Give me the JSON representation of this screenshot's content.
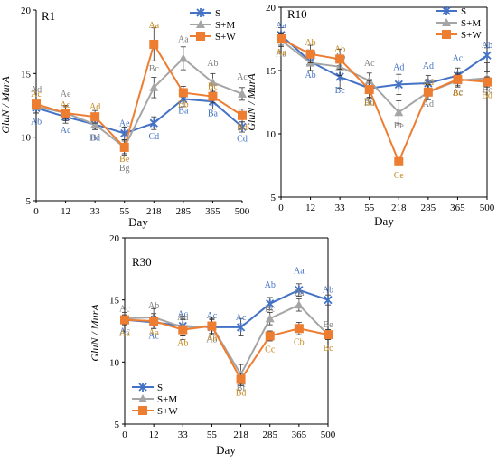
{
  "colors": {
    "S": "#4472c4",
    "S+M": "#a5a5a5",
    "S+W": "#ed7d31",
    "axis": "#000000",
    "letters_S": "#4472c4",
    "letters_M": "#7f7f7f",
    "letters_W": "#c5851a"
  },
  "chart_data": [
    {
      "type": "line",
      "title": "R1",
      "xlabel": "Day",
      "ylabel": "GluN / MurA",
      "categories": [
        "0",
        "12",
        "33",
        "55",
        "218",
        "285",
        "365",
        "500"
      ],
      "ylim": [
        5,
        20
      ],
      "yticks": [
        "5",
        "10",
        "15",
        "20"
      ],
      "legend_position": "top-right",
      "series": [
        {
          "name": "S",
          "values": [
            12.3,
            11.6,
            11.0,
            10.3,
            11.1,
            13.0,
            12.8,
            10.8
          ],
          "err": [
            0.4,
            0.5,
            0.4,
            0.5,
            0.5,
            0.6,
            0.6,
            0.4
          ],
          "letters": [
            "Ab",
            "Ac",
            "Bd",
            "Ae",
            "Cd",
            "Ba",
            "Ba",
            "Cd"
          ]
        },
        {
          "name": "S+M",
          "values": [
            12.4,
            11.9,
            11.0,
            9.2,
            13.9,
            16.2,
            14.3,
            13.4
          ],
          "err": [
            0.5,
            0.5,
            0.4,
            0.5,
            0.8,
            0.9,
            0.7,
            0.5
          ],
          "letters": [
            "Ad",
            "Ae",
            "Bf",
            "Bg",
            "Bc",
            "Aa",
            "Ab",
            "Ac"
          ]
        },
        {
          "name": "S+W",
          "values": [
            12.6,
            11.9,
            11.6,
            9.2,
            17.3,
            13.5,
            13.2,
            11.7
          ],
          "err": [
            0.4,
            0.6,
            0.5,
            0.6,
            1.3,
            0.5,
            0.5,
            0.5
          ],
          "letters": [
            "Ac",
            "Ad",
            "Ad",
            "Be",
            "Aa",
            "Bb",
            "Bc",
            "Bd"
          ]
        }
      ]
    },
    {
      "type": "line",
      "title": "R10",
      "xlabel": "Day",
      "ylabel": "GluN / MurA",
      "categories": [
        "0",
        "12",
        "33",
        "55",
        "218",
        "285",
        "365",
        "500"
      ],
      "ylim": [
        5,
        20
      ],
      "yticks": [
        "5",
        "10",
        "15",
        "20"
      ],
      "legend_position": "top-right",
      "series": [
        {
          "name": "S",
          "values": [
            17.8,
            15.7,
            14.5,
            13.6,
            13.9,
            14.0,
            14.6,
            16.2
          ],
          "err": [
            0.6,
            0.7,
            0.9,
            0.7,
            0.8,
            0.6,
            0.6,
            0.6
          ],
          "letters": [
            "Aa",
            "Ab",
            "Bc",
            "Bd",
            "Ad",
            "Ad",
            "Ac",
            "Ab"
          ]
        },
        {
          "name": "S+M",
          "values": [
            17.4,
            15.6,
            15.3,
            14.2,
            11.7,
            13.3,
            14.2,
            14.4
          ],
          "err": [
            0.5,
            0.6,
            0.7,
            0.6,
            0.9,
            0.6,
            0.5,
            0.5
          ],
          "letters": [
            "Aa",
            "Ab",
            "Ab",
            "Ac",
            "Be",
            "Ad",
            "Ac",
            "Bc"
          ]
        },
        {
          "name": "S+W",
          "values": [
            17.5,
            16.3,
            15.9,
            13.5,
            7.8,
            13.3,
            14.3,
            14.1
          ],
          "err": [
            0.5,
            0.7,
            0.8,
            0.7,
            0.3,
            0.6,
            0.5,
            0.4
          ],
          "letters": [
            "Aa",
            "Ab",
            "Ab",
            "Bd",
            "Ce",
            "Ad",
            "Bc",
            "Bd"
          ]
        }
      ]
    },
    {
      "type": "line",
      "title": "R30",
      "xlabel": "Day",
      "ylabel": "GluN / MurA",
      "categories": [
        "0",
        "12",
        "33",
        "55",
        "218",
        "285",
        "365",
        "500"
      ],
      "ylim": [
        5,
        20
      ],
      "yticks": [
        "5",
        "10",
        "15",
        "20"
      ],
      "legend_position": "bottom-left",
      "series": [
        {
          "name": "S",
          "values": [
            13.4,
            13.2,
            12.9,
            12.8,
            12.8,
            14.7,
            15.8,
            15.0
          ],
          "err": [
            0.4,
            0.5,
            0.8,
            0.6,
            0.7,
            0.5,
            0.5,
            0.4
          ],
          "letters": [
            "Ac",
            "Ac",
            "Ac",
            "Ac",
            "Ac",
            "Ab",
            "Aa",
            "Ab"
          ]
        },
        {
          "name": "S+M",
          "values": [
            13.5,
            13.6,
            12.8,
            12.9,
            9.0,
            13.5,
            14.6,
            12.2
          ],
          "err": [
            0.5,
            0.7,
            0.7,
            0.6,
            0.8,
            0.5,
            0.5,
            0.4
          ],
          "letters": [
            "Ac",
            "Ab",
            "Ad",
            "Ab",
            "Bf",
            "Bc",
            "Ba",
            "Be"
          ]
        },
        {
          "name": "S+W",
          "values": [
            13.4,
            13.3,
            12.6,
            12.9,
            8.6,
            12.1,
            12.7,
            12.2
          ],
          "err": [
            0.4,
            0.6,
            0.8,
            0.7,
            0.5,
            0.4,
            0.5,
            0.4
          ],
          "letters": [
            "Aa",
            "Aa",
            "Ab",
            "Aa",
            "Bd",
            "Cc",
            "Cb",
            "Bc"
          ]
        }
      ]
    }
  ]
}
